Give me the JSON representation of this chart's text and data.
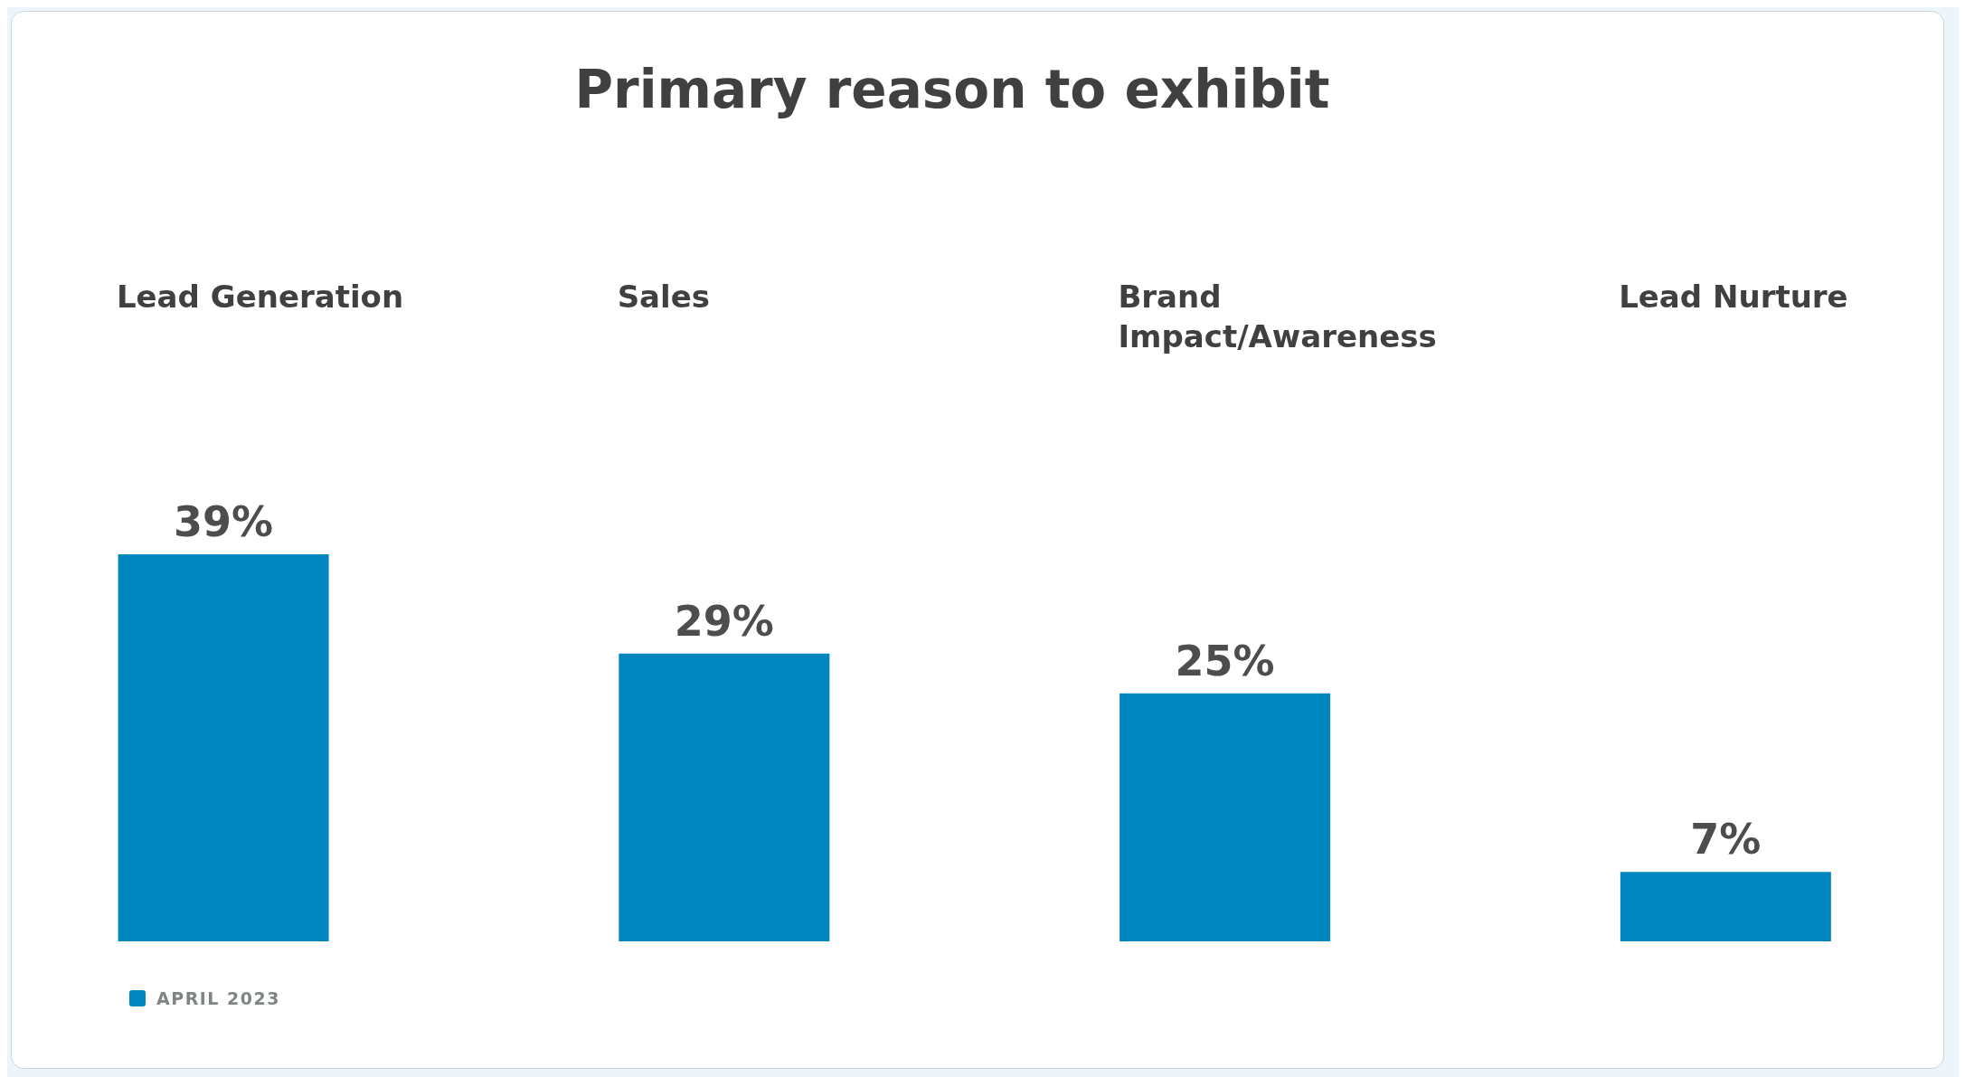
{
  "chart_data": {
    "type": "bar",
    "title": "Primary reason to exhibit",
    "categories": [
      "Lead Generation",
      "Sales",
      "Brand Impact/Awareness",
      "Lead Nurture"
    ],
    "series": [
      {
        "name": "APRIL 2023",
        "color": "#0086bf",
        "values": [
          39,
          29,
          25,
          7
        ],
        "value_labels": [
          "39%",
          "29%",
          "25%",
          "7%"
        ]
      }
    ],
    "legend": "bottom left",
    "grid": false
  }
}
